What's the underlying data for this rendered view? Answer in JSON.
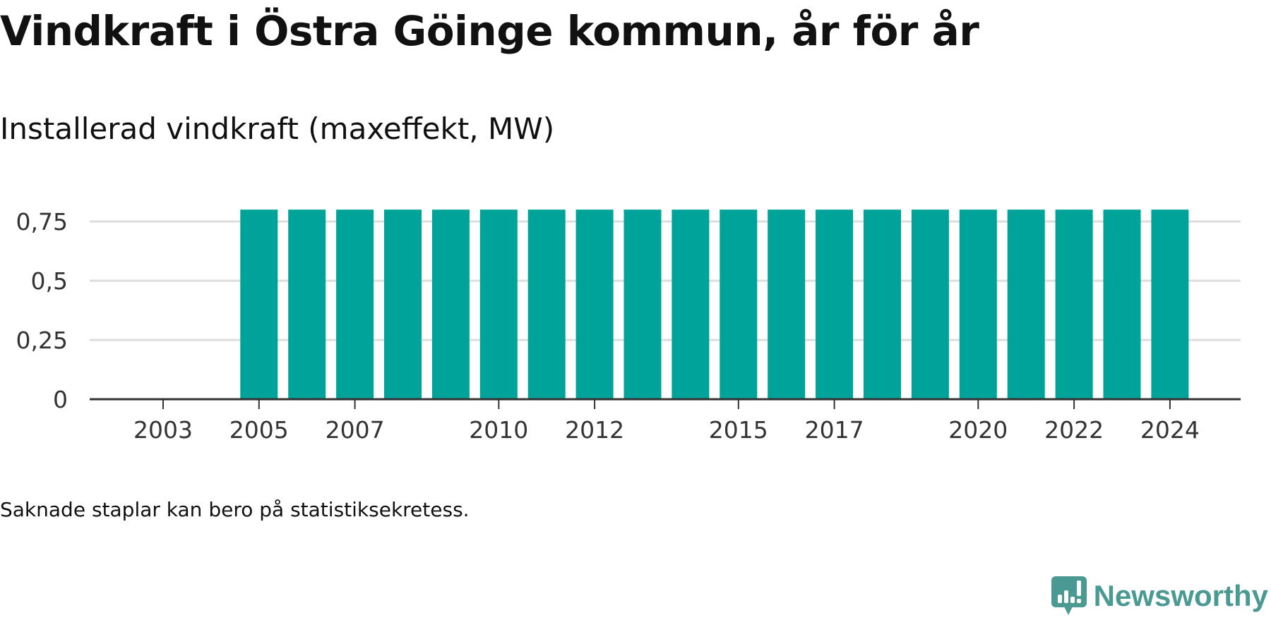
{
  "title": "Vindkraft i Östra Göinge kommun, år för år",
  "subtitle": "Installerad vindkraft (maxeffekt, MW)",
  "footnote": "Saknade staplar kan bero på statistiksekretess.",
  "brand": {
    "name": "Newsworthy",
    "icon": "newsworthy-logo-icon"
  },
  "colors": {
    "bar": "#00a39a",
    "grid": "#dddddd",
    "axis": "#333333",
    "text": "#333333",
    "brand": "#4a9a93"
  },
  "chart_data": {
    "type": "bar",
    "x": [
      2003,
      2004,
      2005,
      2006,
      2007,
      2008,
      2009,
      2010,
      2011,
      2012,
      2013,
      2014,
      2015,
      2016,
      2017,
      2018,
      2019,
      2020,
      2021,
      2022,
      2023,
      2024
    ],
    "values": [
      null,
      null,
      0.8,
      0.8,
      0.8,
      0.8,
      0.8,
      0.8,
      0.8,
      0.8,
      0.8,
      0.8,
      0.8,
      0.8,
      0.8,
      0.8,
      0.8,
      0.8,
      0.8,
      0.8,
      0.8,
      0.8
    ],
    "x_tick_labels": [
      "2003",
      "2005",
      "2007",
      "2010",
      "2012",
      "2015",
      "2017",
      "2020",
      "2022",
      "2024"
    ],
    "y_ticks": [
      0,
      0.25,
      0.5,
      0.75
    ],
    "y_tick_labels": [
      "0",
      "0,25",
      "0,5",
      "0,75"
    ],
    "ylim": [
      0,
      0.8
    ],
    "xlabel": "",
    "ylabel": "",
    "grid": true,
    "legend": "none"
  }
}
